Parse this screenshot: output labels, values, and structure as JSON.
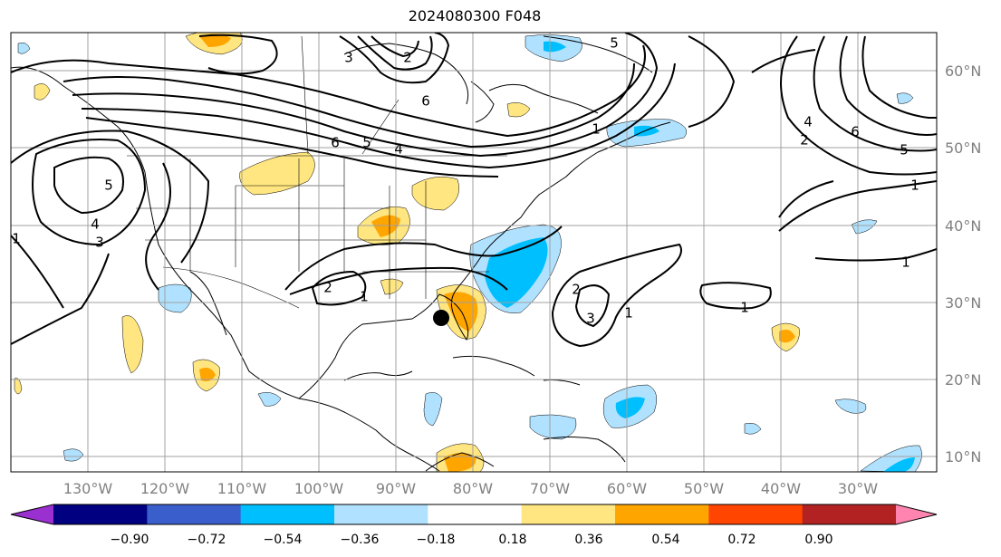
{
  "title": "2024080300 F048",
  "lat_labels": [
    "60°N",
    "50°N",
    "40°N",
    "30°N",
    "20°N",
    "10°N"
  ],
  "lon_labels": [
    "130°W",
    "120°W",
    "110°W",
    "100°W",
    "90°W",
    "80°W",
    "70°W",
    "60°W",
    "50°W",
    "40°W",
    "30°W"
  ],
  "colorbar": {
    "ticks": [
      "−0.90",
      "−0.72",
      "−0.54",
      "−0.36",
      "−0.18",
      "0.18",
      "0.36",
      "0.54",
      "0.72",
      "0.90"
    ],
    "colors": [
      "#9b30d0",
      "#000080",
      "#3a5fcd",
      "#00bfff",
      "#b0e2ff",
      "#ffffff",
      "#ffe680",
      "#ffa500",
      "#ff4500",
      "#b22222",
      "#ff85b0"
    ]
  },
  "contour_labels": [
    "1",
    "2",
    "3",
    "4",
    "5",
    "6"
  ],
  "storm_marker": {
    "lat": 28,
    "lon": -84.5
  },
  "contour_color": "#000000",
  "grid_color": "#a0a0a0"
}
